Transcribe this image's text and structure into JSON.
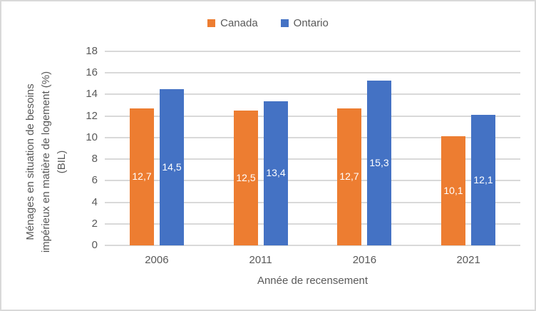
{
  "chart_data": {
    "type": "bar",
    "categories": [
      "2006",
      "2011",
      "2016",
      "2021"
    ],
    "series": [
      {
        "name": "Canada",
        "color": "#ED7D31",
        "values": [
          12.7,
          12.5,
          12.7,
          10.1
        ],
        "labels": [
          "12,7",
          "12,5",
          "12,7",
          "10,1"
        ]
      },
      {
        "name": "Ontario",
        "color": "#4472C4",
        "values": [
          14.5,
          13.4,
          15.3,
          12.1
        ],
        "labels": [
          "14,5",
          "13,4",
          "15,3",
          "12,1"
        ]
      }
    ],
    "title": "",
    "xlabel": "Année de recensement",
    "ylabel": "Ménages en situation de besoins impérieux en matière de logement (%) (BIL)",
    "ylabel_lines": [
      "Ménages en situation de besoins",
      "impérieux en matière de logement (%)",
      "(BIL)"
    ],
    "ylim": [
      0,
      18
    ],
    "yticks": [
      0,
      2,
      4,
      6,
      8,
      10,
      12,
      14,
      16,
      18
    ],
    "grid": true,
    "legend_position": "top",
    "data_label_position": "center",
    "data_label_color": "#FFFFFF"
  },
  "colors": {
    "gridline": "#D9D9D9",
    "axis_line": "#D9D9D9",
    "text": "#595959",
    "border": "#D9D9D9",
    "background": "#FFFFFF"
  }
}
